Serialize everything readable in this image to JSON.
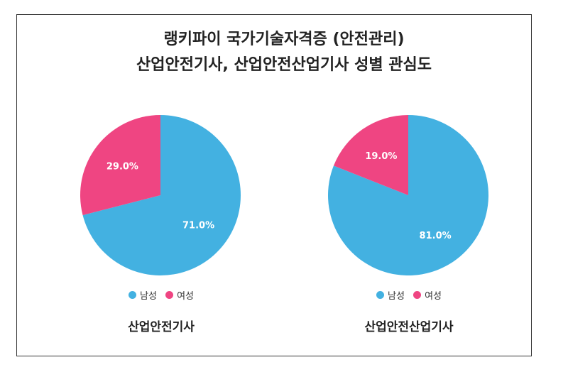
{
  "title": {
    "line1": "랭키파이 국가기술자격증 (안전관리)",
    "line2": "산업안전기사, 산업안전산업기사 성별 관심도"
  },
  "colors": {
    "male": "#43B1E1",
    "female": "#EF4582"
  },
  "chart_data": [
    {
      "type": "pie",
      "title": "산업안전기사",
      "categories": [
        "남성",
        "여성"
      ],
      "values": [
        71.0,
        29.0
      ],
      "labels": [
        "71.0%",
        "29.0%"
      ],
      "legend": "bottom"
    },
    {
      "type": "pie",
      "title": "산업안전산업기사",
      "categories": [
        "남성",
        "여성"
      ],
      "values": [
        81.0,
        19.0
      ],
      "labels": [
        "81.0%",
        "19.0%"
      ],
      "legend": "bottom"
    }
  ]
}
